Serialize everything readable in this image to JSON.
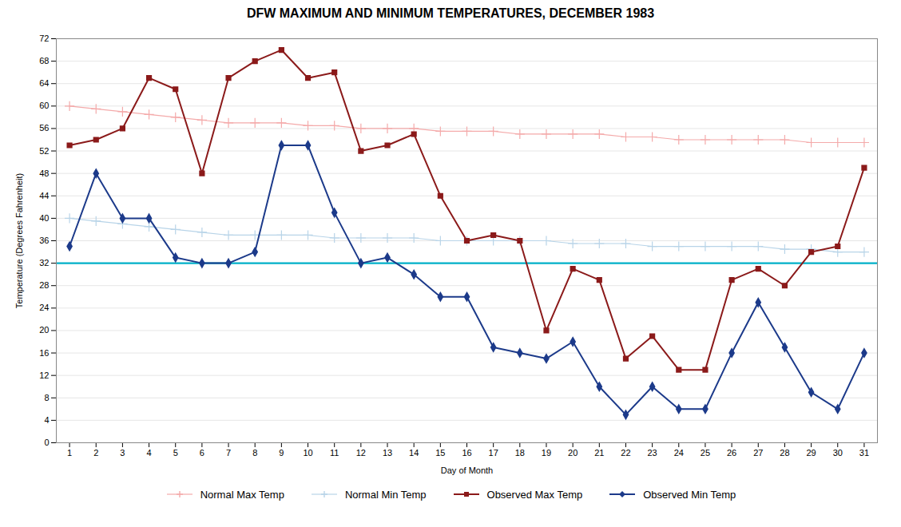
{
  "chart_data": {
    "type": "line",
    "title": "DFW MAXIMUM AND MINIMUM TEMPERATURES, DECEMBER 1983",
    "xlabel": "Day of Month",
    "ylabel": "Temperature (Degrees Fahrenheit)",
    "x": [
      1,
      2,
      3,
      4,
      5,
      6,
      7,
      8,
      9,
      10,
      11,
      12,
      13,
      14,
      15,
      16,
      17,
      18,
      19,
      20,
      21,
      22,
      23,
      24,
      25,
      26,
      27,
      28,
      29,
      30,
      31
    ],
    "series": [
      {
        "name": "Normal Max Temp",
        "color": "#F4AAAA",
        "marker": "plus",
        "values": [
          60,
          59.5,
          59,
          58.5,
          58,
          57.5,
          57,
          57,
          57,
          56.5,
          56.5,
          56,
          56,
          56,
          55.5,
          55.5,
          55.5,
          55,
          55,
          55,
          55,
          54.5,
          54.5,
          54,
          54,
          54,
          54,
          54,
          53.5,
          53.5,
          53.5
        ]
      },
      {
        "name": "Normal Min Temp",
        "color": "#B8D4E8",
        "marker": "plus",
        "values": [
          40,
          39.5,
          39,
          38.5,
          38,
          37.5,
          37,
          37,
          37,
          37,
          36.5,
          36.5,
          36.5,
          36.5,
          36,
          36,
          36,
          36,
          36,
          35.5,
          35.5,
          35.5,
          35,
          35,
          35,
          35,
          35,
          34.5,
          34.5,
          34,
          34
        ]
      },
      {
        "name": "Observed Max Temp",
        "color": "#8B1A1A",
        "marker": "square",
        "values": [
          53,
          54,
          56,
          65,
          63,
          48,
          65,
          68,
          70,
          65,
          66,
          52,
          53,
          55,
          44,
          36,
          37,
          36,
          20,
          31,
          29,
          15,
          19,
          13,
          13,
          29,
          31,
          28,
          34,
          35,
          49
        ]
      },
      {
        "name": "Observed Min Temp",
        "color": "#1C3A8A",
        "marker": "diamond",
        "values": [
          35,
          48,
          40,
          40,
          33,
          32,
          32,
          34,
          53,
          53,
          41,
          32,
          33,
          30,
          26,
          26,
          17,
          16,
          15,
          18,
          10,
          5,
          10,
          6,
          6,
          16,
          25,
          17,
          9,
          6,
          16
        ]
      }
    ],
    "hline": {
      "value": 32,
      "color": "#00B0C8"
    },
    "xlim": [
      0.5,
      31.5
    ],
    "xticks": [
      1,
      2,
      3,
      4,
      5,
      6,
      7,
      8,
      9,
      10,
      11,
      12,
      13,
      14,
      15,
      16,
      17,
      18,
      19,
      20,
      21,
      22,
      23,
      24,
      25,
      26,
      27,
      28,
      29,
      30,
      31
    ],
    "ylim": [
      0,
      72
    ],
    "yticks": [
      0,
      4,
      8,
      12,
      16,
      20,
      24,
      28,
      32,
      36,
      40,
      44,
      48,
      52,
      56,
      60,
      64,
      68,
      72
    ],
    "grid": true,
    "legend": "bottom"
  }
}
